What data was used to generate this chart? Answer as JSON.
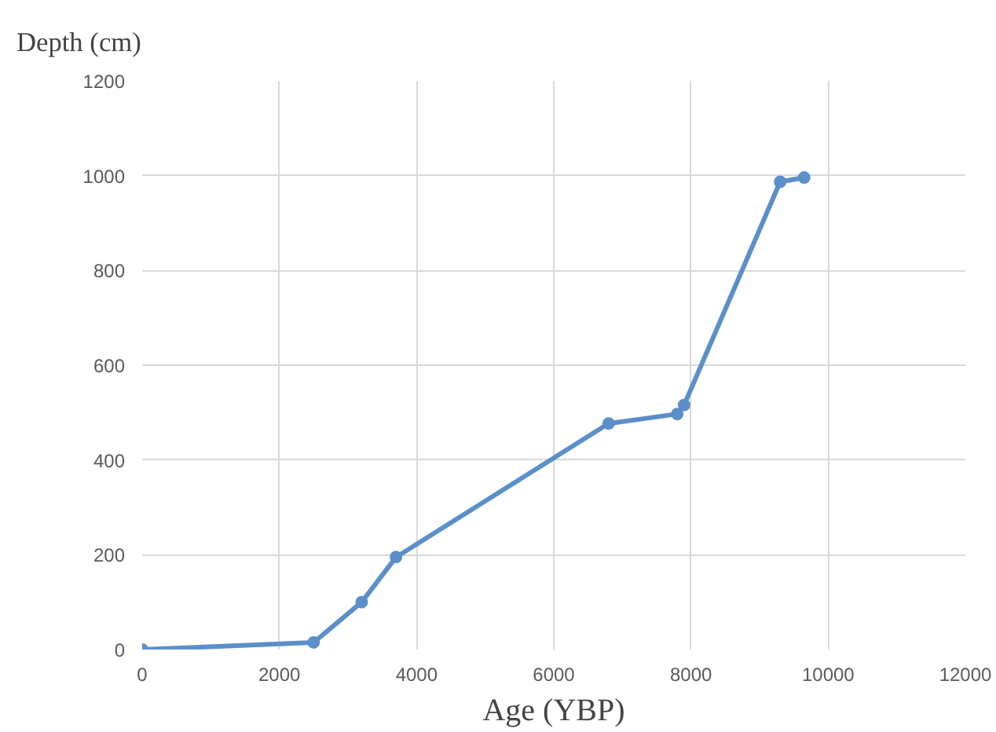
{
  "chart_data": {
    "type": "line",
    "ylabel": "Depth (cm)",
    "xlabel": "Age (YBP)",
    "x": [
      0,
      2500,
      3200,
      3700,
      6800,
      7800,
      7900,
      9300,
      9650
    ],
    "series": [
      {
        "color": "#5b8fc9",
        "values": [
          0,
          15,
          100,
          195,
          477,
          497,
          516,
          987,
          996
        ]
      }
    ],
    "xlim": [
      0,
      12000
    ],
    "xticks": [
      0,
      2000,
      4000,
      6000,
      8000,
      10000,
      12000
    ],
    "ylim": [
      0,
      1200
    ],
    "yticks": [
      0,
      200,
      400,
      600,
      800,
      1000,
      1200
    ],
    "grid": true,
    "marker": "circle",
    "line_style": "solid"
  }
}
